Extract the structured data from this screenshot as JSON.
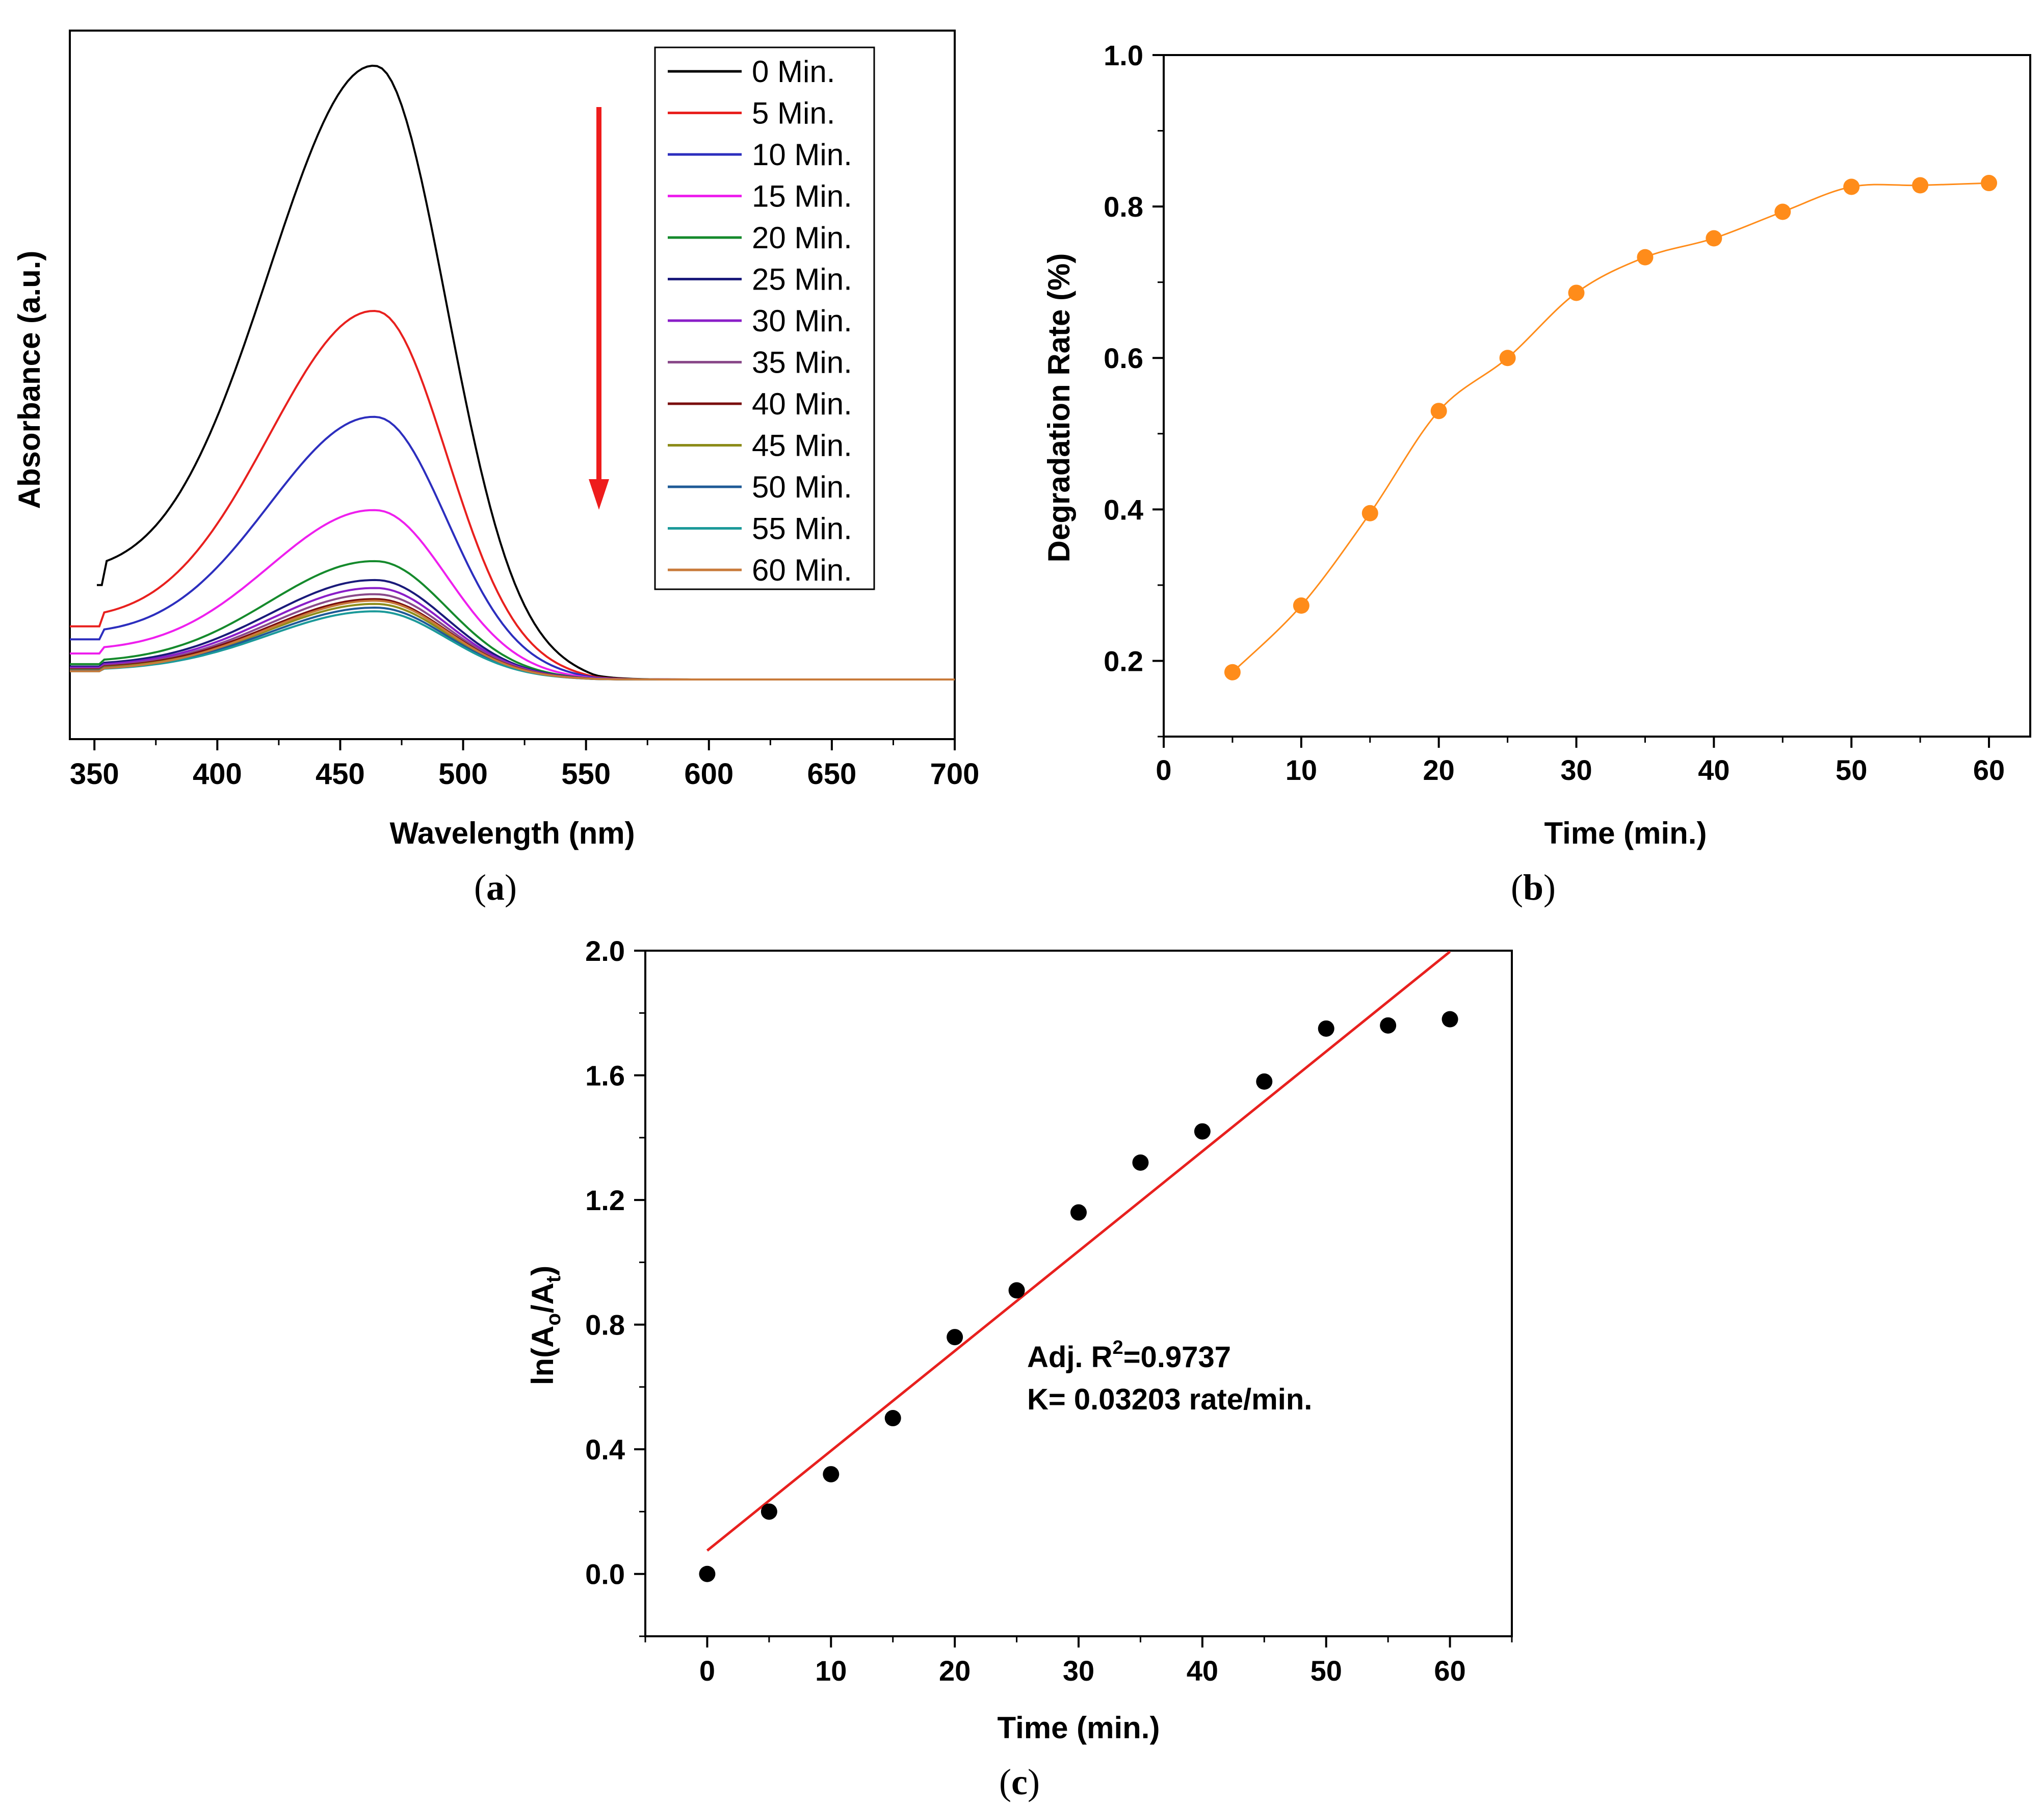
{
  "chart_data": [
    {
      "panel": "a",
      "type": "line",
      "xlabel": "Wavelength (nm)",
      "ylabel": "Absorbance (a.u.)",
      "xlim": [
        340,
        700
      ],
      "xticks": [
        350,
        400,
        450,
        500,
        550,
        600,
        650,
        700
      ],
      "y_ticks_shown": false,
      "grid": false,
      "legend_position": "top-right",
      "annotation": "red downward arrow indicating decreasing absorbance with time",
      "arrow_color": "#ee1c1c",
      "peak_wavelength": 465,
      "series": [
        {
          "name": "0 Min.",
          "color": "#000000",
          "start": 351,
          "baseline": 0.0,
          "edge": 0.16,
          "peak": 1.0
        },
        {
          "name": "5 Min.",
          "color": "#e8201e",
          "start": 340,
          "baseline": 0.0,
          "edge": 0.09,
          "peak": 0.602
        },
        {
          "name": "10 Min.",
          "color": "#2c2ebe",
          "start": 340,
          "baseline": 0.0,
          "edge": 0.068,
          "peak": 0.428
        },
        {
          "name": "15 Min.",
          "color": "#ee1fee",
          "start": 340,
          "baseline": 0.0,
          "edge": 0.044,
          "peak": 0.276
        },
        {
          "name": "20 Min.",
          "color": "#158a2c",
          "start": 340,
          "baseline": 0.0,
          "edge": 0.026,
          "peak": 0.194
        },
        {
          "name": "25 Min.",
          "color": "#1a1a7a",
          "start": 340,
          "baseline": 0.0,
          "edge": 0.022,
          "peak": 0.163
        },
        {
          "name": "30 Min.",
          "color": "#8a1ec8",
          "start": 340,
          "baseline": 0.0,
          "edge": 0.02,
          "peak": 0.15
        },
        {
          "name": "35 Min.",
          "color": "#8a4a8a",
          "start": 340,
          "baseline": 0.0,
          "edge": 0.018,
          "peak": 0.14
        },
        {
          "name": "40 Min.",
          "color": "#7a0e0e",
          "start": 340,
          "baseline": 0.0,
          "edge": 0.017,
          "peak": 0.132
        },
        {
          "name": "45 Min.",
          "color": "#8c8c1a",
          "start": 340,
          "baseline": 0.0,
          "edge": 0.016,
          "peak": 0.124
        },
        {
          "name": "50 Min.",
          "color": "#1e5a96",
          "start": 340,
          "baseline": 0.0,
          "edge": 0.015,
          "peak": 0.118
        },
        {
          "name": "55 Min.",
          "color": "#1c9a9a",
          "start": 340,
          "baseline": 0.0,
          "edge": 0.014,
          "peak": 0.112
        },
        {
          "name": "60 Min.",
          "color": "#c87a3a",
          "start": 340,
          "baseline": 0.0,
          "edge": 0.014,
          "peak": 0.13
        }
      ]
    },
    {
      "panel": "b",
      "type": "line",
      "xlabel": "Time (min.)",
      "ylabel": "Degradation Rate (%)",
      "xlim": [
        0,
        63
      ],
      "ylim": [
        0.1,
        1.0
      ],
      "xticks": [
        0,
        10,
        20,
        30,
        40,
        50,
        60
      ],
      "yticks": [
        0.2,
        0.4,
        0.6,
        0.8,
        1.0
      ],
      "ytick_labels": [
        "0.2",
        "0.4",
        "0.6",
        "0.8",
        "1.0"
      ],
      "grid": false,
      "series": [
        {
          "color": "#ff8c1a",
          "x": [
            5,
            10,
            15,
            20,
            25,
            30,
            35,
            40,
            45,
            50,
            55,
            60
          ],
          "y": [
            0.185,
            0.273,
            0.395,
            0.53,
            0.6,
            0.686,
            0.733,
            0.758,
            0.793,
            0.826,
            0.828,
            0.831
          ]
        }
      ]
    },
    {
      "panel": "c",
      "type": "scatter",
      "xlabel": "Time (min.)",
      "ylabel": "ln(Ao/At)",
      "xlim": [
        -5,
        65
      ],
      "ylim": [
        -0.2,
        2.0
      ],
      "xticks": [
        0,
        10,
        20,
        30,
        40,
        50,
        60
      ],
      "yticks": [
        0.0,
        0.4,
        0.8,
        1.2,
        1.6,
        2.0
      ],
      "ytick_labels": [
        "0.0",
        "0.4",
        "0.8",
        "1.2",
        "1.6",
        "2.0"
      ],
      "grid": false,
      "series": [
        {
          "color": "#000000",
          "x": [
            0,
            5,
            10,
            15,
            20,
            25,
            30,
            35,
            40,
            45,
            50,
            55,
            60
          ],
          "y": [
            0.0,
            0.2,
            0.32,
            0.5,
            0.76,
            0.91,
            1.16,
            1.32,
            1.42,
            1.58,
            1.75,
            1.76,
            1.78
          ]
        }
      ],
      "fit": {
        "color": "#e8201e",
        "slope": 0.03203,
        "intercept": 0.075,
        "x": [
          0,
          60
        ]
      },
      "annotation_line1_prefix": "Adj. R",
      "annotation_line1_sup": "2",
      "annotation_line1_suffix": "=0.9737",
      "annotation_line2": "K= 0.03203 rate/min."
    }
  ],
  "captions": {
    "a": "a",
    "b": "b",
    "c": "c"
  }
}
